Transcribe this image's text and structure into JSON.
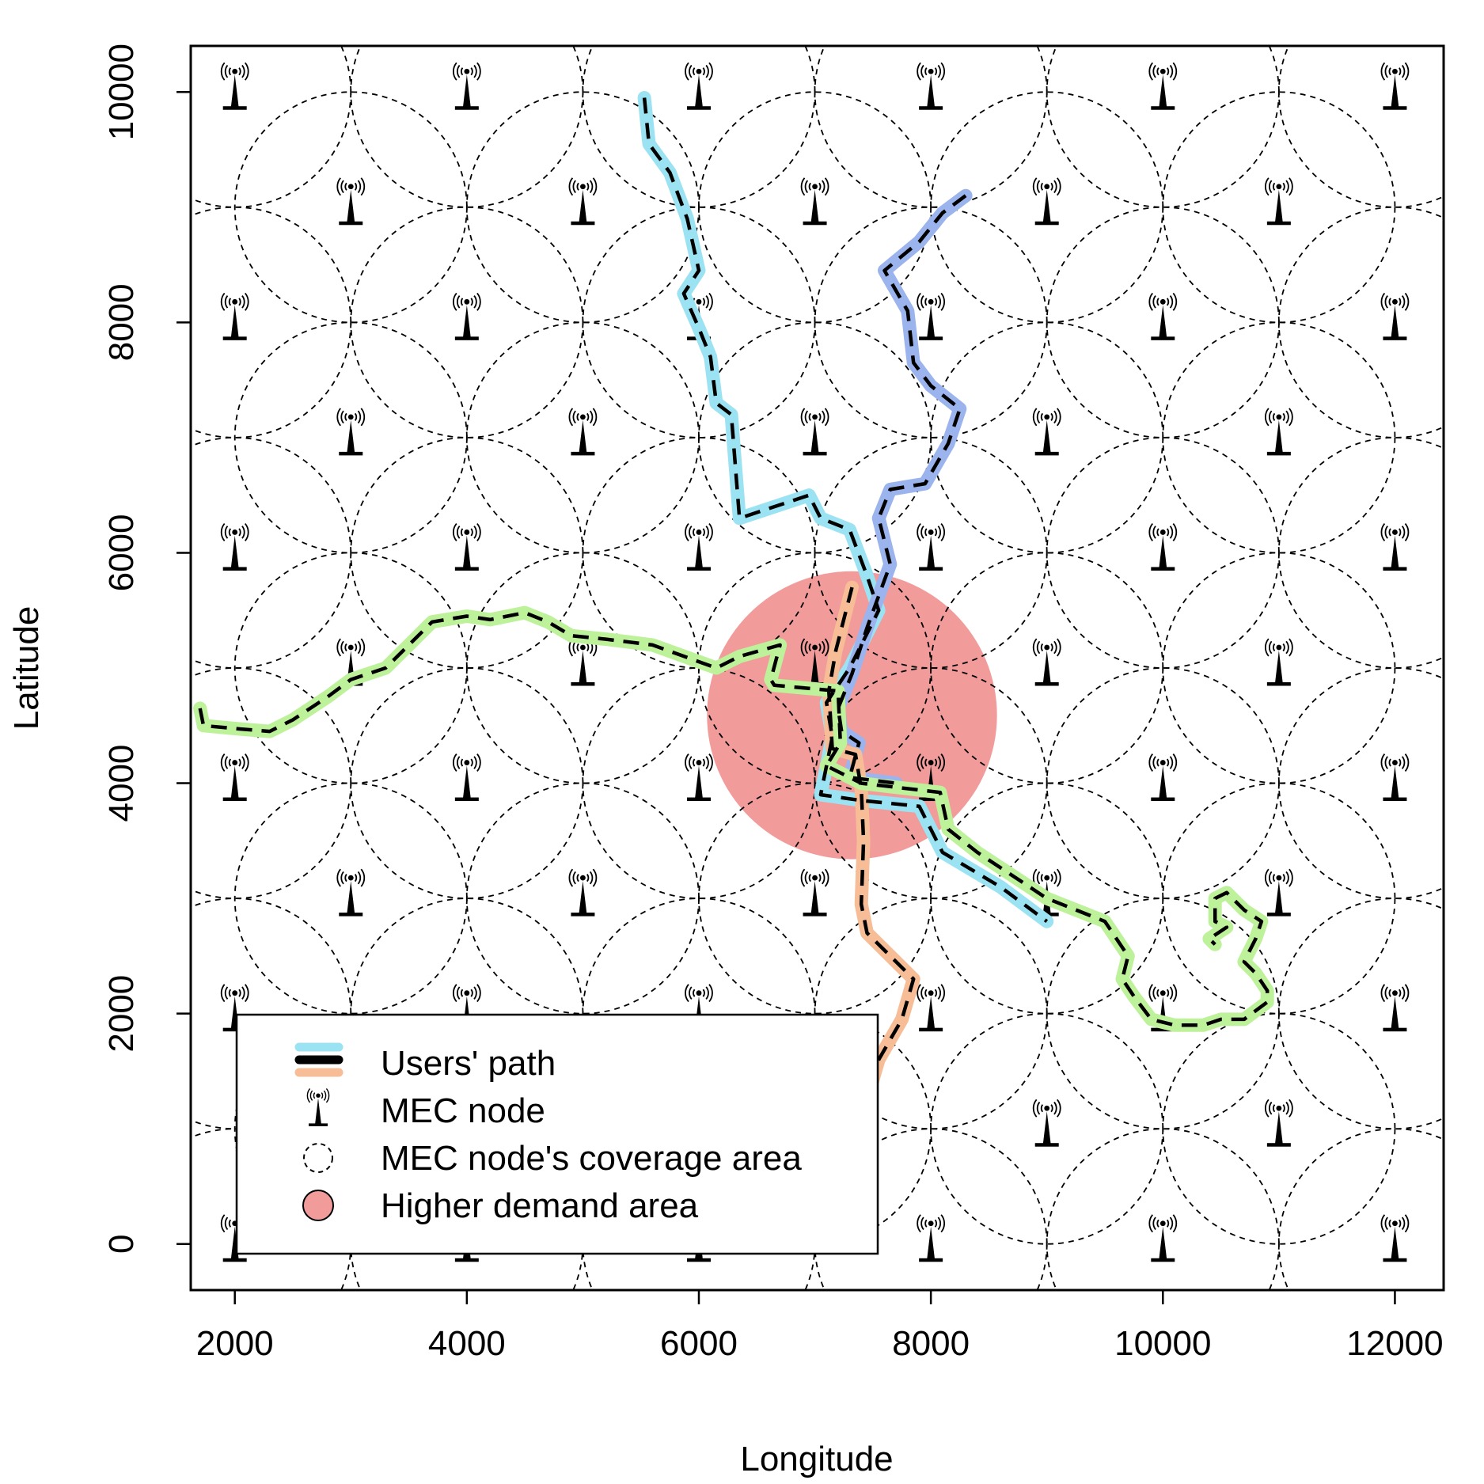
{
  "chart_data": {
    "type": "scatter",
    "xlabel": "Longitude",
    "ylabel": "Latitude",
    "xlim": [
      1620,
      12420
    ],
    "ylim": [
      -400,
      10400
    ],
    "x_ticks": [
      {
        "value": 2000,
        "label": "2000"
      },
      {
        "value": 4000,
        "label": "4000"
      },
      {
        "value": 6000,
        "label": "6000"
      },
      {
        "value": 8000,
        "label": "8000"
      },
      {
        "value": 10000,
        "label": "10000"
      },
      {
        "value": 12000,
        "label": "12000"
      }
    ],
    "y_ticks": [
      {
        "value": 0,
        "label": "0"
      },
      {
        "value": 2000,
        "label": "2000"
      },
      {
        "value": 4000,
        "label": "4000"
      },
      {
        "value": 6000,
        "label": "6000"
      },
      {
        "value": 8000,
        "label": "8000"
      },
      {
        "value": 10000,
        "label": "10000"
      }
    ],
    "mec_nodes": {
      "even_rows": {
        "x": [
          2000,
          4000,
          6000,
          8000,
          10000,
          12000
        ],
        "y": [
          0,
          2000,
          4000,
          6000,
          8000,
          10000
        ]
      },
      "odd_rows": {
        "x": [
          3000,
          5000,
          7000,
          9000,
          11000
        ],
        "y": [
          1000,
          3000,
          5000,
          7000,
          9000
        ]
      },
      "coverage_radius": 1000,
      "coverage_style": "dashed"
    },
    "higher_demand_area": {
      "center": [
        7320,
        4590
      ],
      "radius": 1250,
      "color": "#f29b9b"
    },
    "series": [
      {
        "color": "#9be3f2",
        "points": [
          [
            5530,
            9950
          ],
          [
            5570,
            9550
          ],
          [
            5750,
            9300
          ],
          [
            5900,
            8900
          ],
          [
            6000,
            8450
          ],
          [
            5870,
            8250
          ],
          [
            6000,
            7950
          ],
          [
            6100,
            7700
          ],
          [
            6150,
            7300
          ],
          [
            6280,
            7200
          ],
          [
            6350,
            6300
          ],
          [
            6950,
            6500
          ],
          [
            7050,
            6300
          ],
          [
            7300,
            6200
          ],
          [
            7450,
            5800
          ],
          [
            7550,
            5500
          ],
          [
            7300,
            5000
          ],
          [
            7100,
            4700
          ],
          [
            7150,
            4400
          ],
          [
            7050,
            3900
          ],
          [
            7400,
            3850
          ],
          [
            7900,
            3800
          ],
          [
            8100,
            3400
          ],
          [
            8600,
            3100
          ],
          [
            9000,
            2800
          ]
        ]
      },
      {
        "color": "#9bb4ee",
        "points": [
          [
            8300,
            9100
          ],
          [
            8100,
            8950
          ],
          [
            7900,
            8700
          ],
          [
            7600,
            8450
          ],
          [
            7800,
            8100
          ],
          [
            7850,
            7650
          ],
          [
            8000,
            7450
          ],
          [
            8250,
            7250
          ],
          [
            8150,
            6950
          ],
          [
            7950,
            6600
          ],
          [
            7650,
            6550
          ],
          [
            7550,
            6300
          ],
          [
            7650,
            5900
          ],
          [
            7450,
            5350
          ],
          [
            7320,
            4950
          ],
          [
            7200,
            4650
          ],
          [
            7230,
            4450
          ],
          [
            7380,
            4350
          ],
          [
            7300,
            4050
          ],
          [
            7700,
            4000
          ]
        ]
      },
      {
        "color": "#f7bd96",
        "points": [
          [
            7320,
            5700
          ],
          [
            7180,
            5150
          ],
          [
            7120,
            4800
          ],
          [
            7150,
            4300
          ],
          [
            7350,
            4250
          ],
          [
            7400,
            3950
          ],
          [
            7420,
            3500
          ],
          [
            7400,
            2950
          ],
          [
            7450,
            2700
          ],
          [
            7600,
            2550
          ],
          [
            7850,
            2300
          ],
          [
            7750,
            1950
          ],
          [
            7550,
            1600
          ],
          [
            7420,
            1150
          ]
        ]
      },
      {
        "color": "#bdf29b",
        "points": [
          [
            1700,
            4650
          ],
          [
            1730,
            4500
          ],
          [
            2050,
            4470
          ],
          [
            2300,
            4450
          ],
          [
            2500,
            4550
          ],
          [
            2800,
            4750
          ],
          [
            3000,
            4900
          ],
          [
            3300,
            5000
          ],
          [
            3500,
            5200
          ],
          [
            3700,
            5400
          ],
          [
            4000,
            5450
          ],
          [
            4200,
            5420
          ],
          [
            4500,
            5480
          ],
          [
            4700,
            5400
          ],
          [
            4900,
            5280
          ],
          [
            5200,
            5250
          ],
          [
            5600,
            5200
          ],
          [
            6150,
            5000
          ],
          [
            6350,
            5100
          ],
          [
            6700,
            5200
          ],
          [
            6620,
            4900
          ],
          [
            6650,
            4850
          ],
          [
            7200,
            4800
          ],
          [
            7220,
            4350
          ],
          [
            7100,
            4150
          ],
          [
            7400,
            4000
          ],
          [
            8080,
            3920
          ],
          [
            8150,
            3600
          ],
          [
            8400,
            3400
          ],
          [
            8700,
            3200
          ],
          [
            9000,
            3000
          ],
          [
            9500,
            2800
          ],
          [
            9700,
            2500
          ],
          [
            9650,
            2300
          ],
          [
            9750,
            2150
          ],
          [
            9900,
            1950
          ],
          [
            10100,
            1900
          ],
          [
            10350,
            1900
          ],
          [
            10500,
            1950
          ],
          [
            10700,
            1950
          ],
          [
            10900,
            2100
          ],
          [
            10900,
            2200
          ],
          [
            10800,
            2350
          ],
          [
            10700,
            2450
          ],
          [
            10800,
            2650
          ],
          [
            10850,
            2800
          ],
          [
            10700,
            2900
          ],
          [
            10550,
            3050
          ],
          [
            10450,
            3000
          ],
          [
            10450,
            2800
          ],
          [
            10550,
            2750
          ],
          [
            10400,
            2650
          ],
          [
            10450,
            2600
          ]
        ]
      }
    ],
    "legend": {
      "position": "bottom-left",
      "entries": [
        {
          "label": "Users' path",
          "symbol": "path"
        },
        {
          "label": "MEC node",
          "symbol": "antenna"
        },
        {
          "label": "MEC node's coverage area",
          "symbol": "dashed-circle"
        },
        {
          "label": "Higher demand area",
          "symbol": "filled-circle"
        }
      ]
    }
  }
}
